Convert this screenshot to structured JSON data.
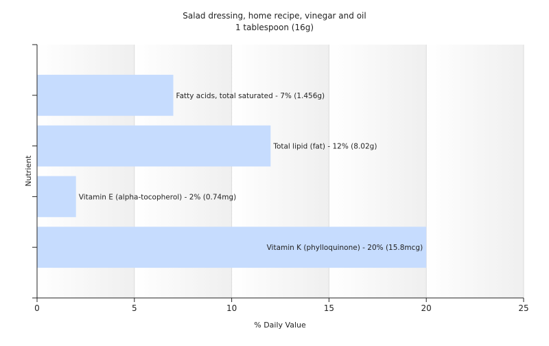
{
  "chart_data": {
    "type": "bar",
    "orientation": "horizontal",
    "title": "Salad dressing, home recipe, vinegar and oil",
    "subtitle": "1 tablespoon (16g)",
    "xlabel": "% Daily Value",
    "ylabel": "Nutrient",
    "xlim": [
      0,
      25
    ],
    "xticks": [
      0,
      5,
      10,
      15,
      20,
      25
    ],
    "grid": true,
    "bar_color": "#c6dcfe",
    "categories": [
      "Fatty acids, total saturated",
      "Total lipid (fat)",
      "Vitamin E (alpha-tocopherol)",
      "Vitamin K (phylloquinone)"
    ],
    "values": [
      7,
      12,
      2,
      20
    ],
    "data_labels": [
      "Fatty acids, total saturated - 7% (1.456g)",
      "Total lipid (fat) - 12% (8.02g)",
      "Vitamin E (alpha-tocopherol) - 2% (0.74mg)",
      "Vitamin K (phylloquinone) - 20% (15.8mcg)"
    ]
  }
}
